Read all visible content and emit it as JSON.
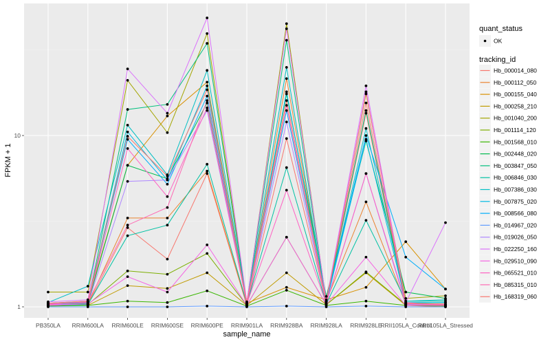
{
  "chart_data": {
    "type": "line",
    "title": "",
    "xlabel": "sample_name",
    "ylabel": "FPKM + 1",
    "yscale": "log10",
    "ylim": [
      0.94,
      60
    ],
    "yticks": [
      1,
      10
    ],
    "ytick_labels": [
      "1",
      "10"
    ],
    "grid": true,
    "categories": [
      "PB350LA",
      "RRIM600LA",
      "RRIM600LE",
      "RRIM600SE",
      "RRIM600PE",
      "RRIM901LA",
      "RRIM928BA",
      "RRIM928LA",
      "RRIM928LE",
      "RRII105LA_Control",
      "RRII105LA_Stressed"
    ],
    "legend_position": "right",
    "legend_quant": {
      "title": "quant_status",
      "entries": [
        "OK"
      ]
    },
    "legend_title": "tracking_id",
    "series": [
      {
        "name": "Hb_000014_080",
        "color": "#F8766D",
        "values": [
          1.02,
          1.03,
          2.9,
          1.9,
          6.0,
          1.02,
          9.6,
          1.05,
          13.5,
          1.02,
          1.0
        ]
      },
      {
        "name": "Hb_000112_050",
        "color": "#EA8331",
        "values": [
          1.03,
          1.04,
          3.3,
          3.3,
          6.2,
          1.03,
          21.5,
          1.08,
          4.1,
          1.04,
          1.01
        ]
      },
      {
        "name": "Hb_000155_040",
        "color": "#D89000",
        "values": [
          1.05,
          1.08,
          6.7,
          13.0,
          20.5,
          1.05,
          1.3,
          1.1,
          1.3,
          2.4,
          1.27
        ]
      },
      {
        "name": "Hb_000258_210",
        "color": "#C09B00",
        "values": [
          1.04,
          1.02,
          1.33,
          1.28,
          1.58,
          1.02,
          1.58,
          1.03,
          1.58,
          1.02,
          1.02
        ]
      },
      {
        "name": "Hb_001040_200",
        "color": "#A3A500",
        "values": [
          1.22,
          1.22,
          21.0,
          10.4,
          39.4,
          1.06,
          45.0,
          1.07,
          17.5,
          1.12,
          1.16
        ]
      },
      {
        "name": "Hb_001114_120",
        "color": "#7CAE00",
        "values": [
          1.02,
          1.03,
          1.62,
          1.55,
          2.05,
          1.02,
          2.55,
          1.03,
          1.6,
          1.03,
          1.03
        ]
      },
      {
        "name": "Hb_001568_010",
        "color": "#39B600",
        "values": [
          1.01,
          1.02,
          1.08,
          1.06,
          1.24,
          1.01,
          1.25,
          1.02,
          1.08,
          1.02,
          1.01
        ]
      },
      {
        "name": "Hb_002448_020",
        "color": "#00BB4E",
        "values": [
          1.03,
          1.05,
          6.7,
          5.6,
          15.5,
          1.04,
          17.5,
          1.15,
          9.3,
          1.22,
          1.12
        ]
      },
      {
        "name": "Hb_003847_050",
        "color": "#00BF7D",
        "values": [
          1.04,
          1.05,
          14.2,
          15.2,
          34.5,
          1.05,
          36.0,
          1.06,
          14.0,
          1.05,
          1.06
        ]
      },
      {
        "name": "Hb_006846_030",
        "color": "#00C1A3",
        "values": [
          1.02,
          1.03,
          2.6,
          3.0,
          6.8,
          1.04,
          6.5,
          1.04,
          3.2,
          1.08,
          1.08
        ]
      },
      {
        "name": "Hb_007386_030",
        "color": "#00BFC4",
        "values": [
          1.06,
          1.32,
          11.5,
          5.9,
          24.0,
          1.06,
          25.0,
          1.06,
          11.0,
          1.08,
          1.1
        ]
      },
      {
        "name": "Hb_007875_020",
        "color": "#00B9E3",
        "values": [
          1.04,
          1.06,
          10.5,
          5.5,
          19.5,
          1.04,
          18.0,
          1.05,
          9.5,
          1.06,
          1.06
        ]
      },
      {
        "name": "Hb_008566_080",
        "color": "#00ADFA",
        "values": [
          1.05,
          1.07,
          9.5,
          5.2,
          17.0,
          1.05,
          14.0,
          1.06,
          10.0,
          1.95,
          1.27
        ]
      },
      {
        "name": "Hb_014967_020",
        "color": "#619CFF",
        "values": [
          1.0,
          1.0,
          1.0,
          1.0,
          1.01,
          1.0,
          1.01,
          1.0,
          1.01,
          1.0,
          1.0
        ]
      },
      {
        "name": "Hb_019026_050",
        "color": "#AE87FF",
        "values": [
          1.03,
          1.04,
          5.4,
          5.5,
          14.0,
          1.04,
          12.0,
          1.05,
          6.0,
          1.03,
          1.03
        ]
      },
      {
        "name": "Hb_022250_160",
        "color": "#DB72FB",
        "values": [
          1.07,
          1.1,
          24.5,
          13.5,
          48.6,
          1.07,
          42.0,
          1.08,
          19.5,
          1.06,
          3.1
        ]
      },
      {
        "name": "Hb_029510_090",
        "color": "#F564E3",
        "values": [
          1.02,
          1.04,
          1.5,
          1.22,
          2.3,
          1.02,
          2.55,
          1.03,
          1.95,
          1.02,
          1.02
        ]
      },
      {
        "name": "Hb_065521_010",
        "color": "#FF61C3",
        "values": [
          1.04,
          1.06,
          8.4,
          4.4,
          14.5,
          1.04,
          4.8,
          1.04,
          6.0,
          1.06,
          1.02
        ]
      },
      {
        "name": "Hb_085315_010",
        "color": "#FF69B4",
        "values": [
          1.03,
          1.07,
          3.0,
          3.8,
          16.0,
          1.03,
          15.0,
          1.04,
          18.0,
          1.04,
          1.03
        ]
      },
      {
        "name": "Hb_168319_060",
        "color": "#F8766D",
        "values": [
          1.05,
          1.08,
          9.9,
          5.8,
          18.5,
          1.06,
          16.0,
          1.07,
          15.5,
          1.05,
          1.04
        ]
      }
    ]
  }
}
